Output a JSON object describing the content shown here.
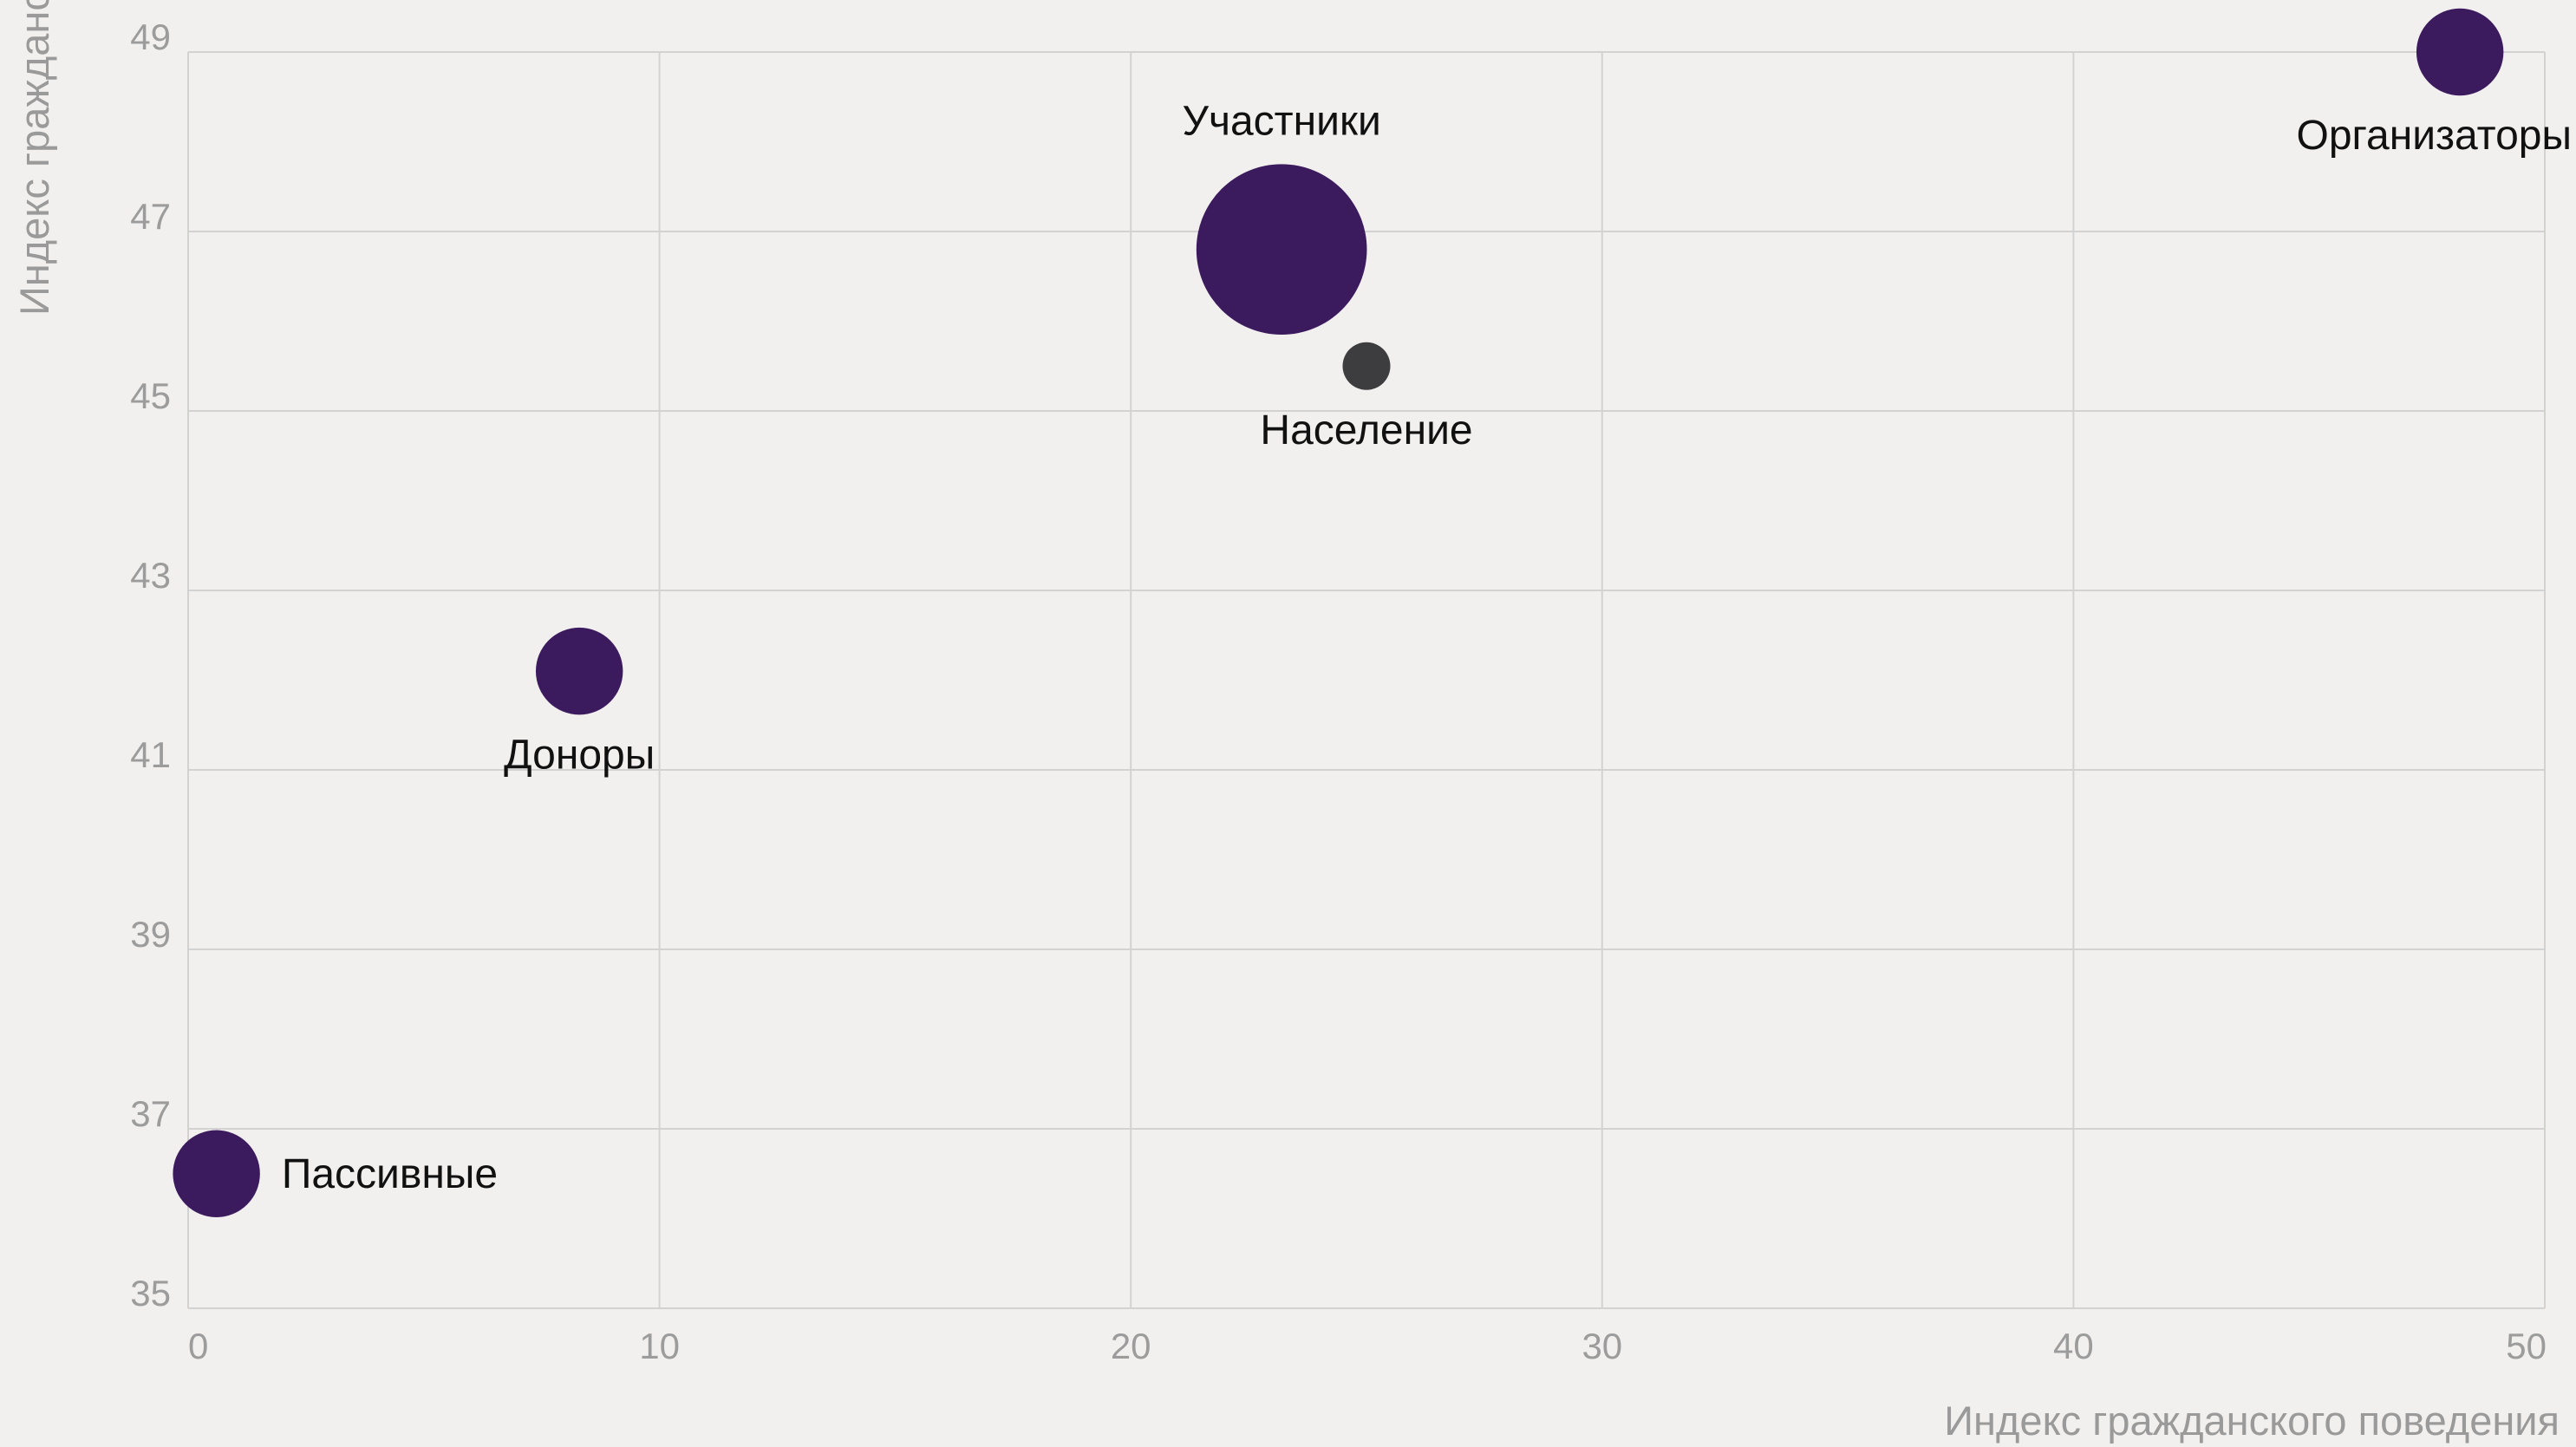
{
  "chart_data": {
    "type": "scatter",
    "xlabel": "Индекс гражданского поведения",
    "ylabel": "Индекс гражданского климата",
    "xlim": [
      0,
      50
    ],
    "ylim": [
      35,
      49
    ],
    "x_ticks": [
      0,
      10,
      20,
      30,
      40,
      50
    ],
    "y_ticks": [
      35,
      37,
      39,
      41,
      43,
      45,
      47,
      49
    ],
    "grid": true,
    "points": [
      {
        "label": "Пассивные",
        "x": 0.6,
        "y": 36.5,
        "size": 6,
        "color": "#3c1a5e",
        "label_position": "right"
      },
      {
        "label": "Доноры",
        "x": 8.3,
        "y": 42.1,
        "size": 6,
        "color": "#3c1a5e",
        "label_position": "below"
      },
      {
        "label": "Участники",
        "x": 23.2,
        "y": 46.8,
        "size": 23,
        "color": "#3c1a5e",
        "label_position": "above"
      },
      {
        "label": "Население",
        "x": 25.0,
        "y": 45.5,
        "size": 1.8,
        "color": "#3d3d3f",
        "label_position": "below"
      },
      {
        "label": "Организаторы",
        "x": 48.2,
        "y": 49.0,
        "size": 6,
        "color": "#3c1a5e",
        "label_position": "below"
      }
    ]
  }
}
